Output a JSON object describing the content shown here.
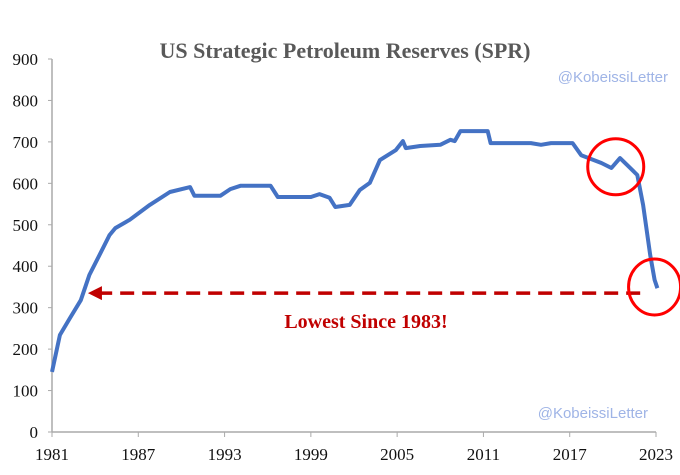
{
  "chart_data": {
    "type": "line",
    "title": "US Strategic Petroleum Reserves (SPR)",
    "xlabel": "",
    "ylabel": "",
    "xlim": [
      1981,
      2023
    ],
    "ylim": [
      0,
      900
    ],
    "x_ticks": [
      "1981",
      "1987",
      "1993",
      "1999",
      "2005",
      "2011",
      "2017",
      "2023"
    ],
    "y_ticks": [
      "0",
      "100",
      "200",
      "300",
      "400",
      "500",
      "600",
      "700",
      "800",
      "900"
    ],
    "grid": false,
    "series": [
      {
        "name": "SPR",
        "color": "#4472c4",
        "x": [
          1981,
          1981.55,
          1982.25,
          1983,
          1983.6,
          1984.3,
          1985,
          1985.4,
          1986.4,
          1987.8,
          1989.2,
          1990.6,
          1990.9,
          1992.7,
          1993.4,
          1994.1,
          1996.2,
          1996.7,
          1999,
          1999.6,
          2000.3,
          2000.7,
          2001.7,
          2002.4,
          2003.1,
          2003.8,
          2004.9,
          2005.4,
          2005.6,
          2006.6,
          2008,
          2008.7,
          2009,
          2009.4,
          2011.3,
          2011.5,
          2014.3,
          2015,
          2015.7,
          2017.2,
          2017.8,
          2019.2,
          2019.9,
          2020.5,
          2021,
          2021.7,
          2022.1,
          2022.6,
          2022.9,
          2023.1
        ],
        "y": [
          145,
          234,
          275,
          318,
          379,
          427,
          475,
          492,
          512,
          548,
          579,
          591,
          570,
          570,
          586,
          594,
          594,
          567,
          567,
          574,
          565,
          543,
          548,
          584,
          601,
          656,
          680,
          702,
          685,
          690,
          693,
          705,
          702,
          726,
          726,
          697,
          697,
          693,
          697,
          697,
          668,
          649,
          637,
          661,
          644,
          620,
          548,
          427,
          367,
          347
        ]
      }
    ],
    "annotations": [
      {
        "text": "Lowest Since 1983!",
        "type": "dashed-arrow",
        "color": "#c00000",
        "from_x": 2021.9,
        "to_x": 1983.5,
        "y": 335
      },
      {
        "type": "circle",
        "color": "#ff0000",
        "x": 2020.2,
        "y": 640
      },
      {
        "type": "circle",
        "color": "#ff0000",
        "x": 2022.9,
        "y": 350
      }
    ],
    "watermarks": [
      "@KobeissiLetter",
      "@KobeissiLetter"
    ]
  }
}
